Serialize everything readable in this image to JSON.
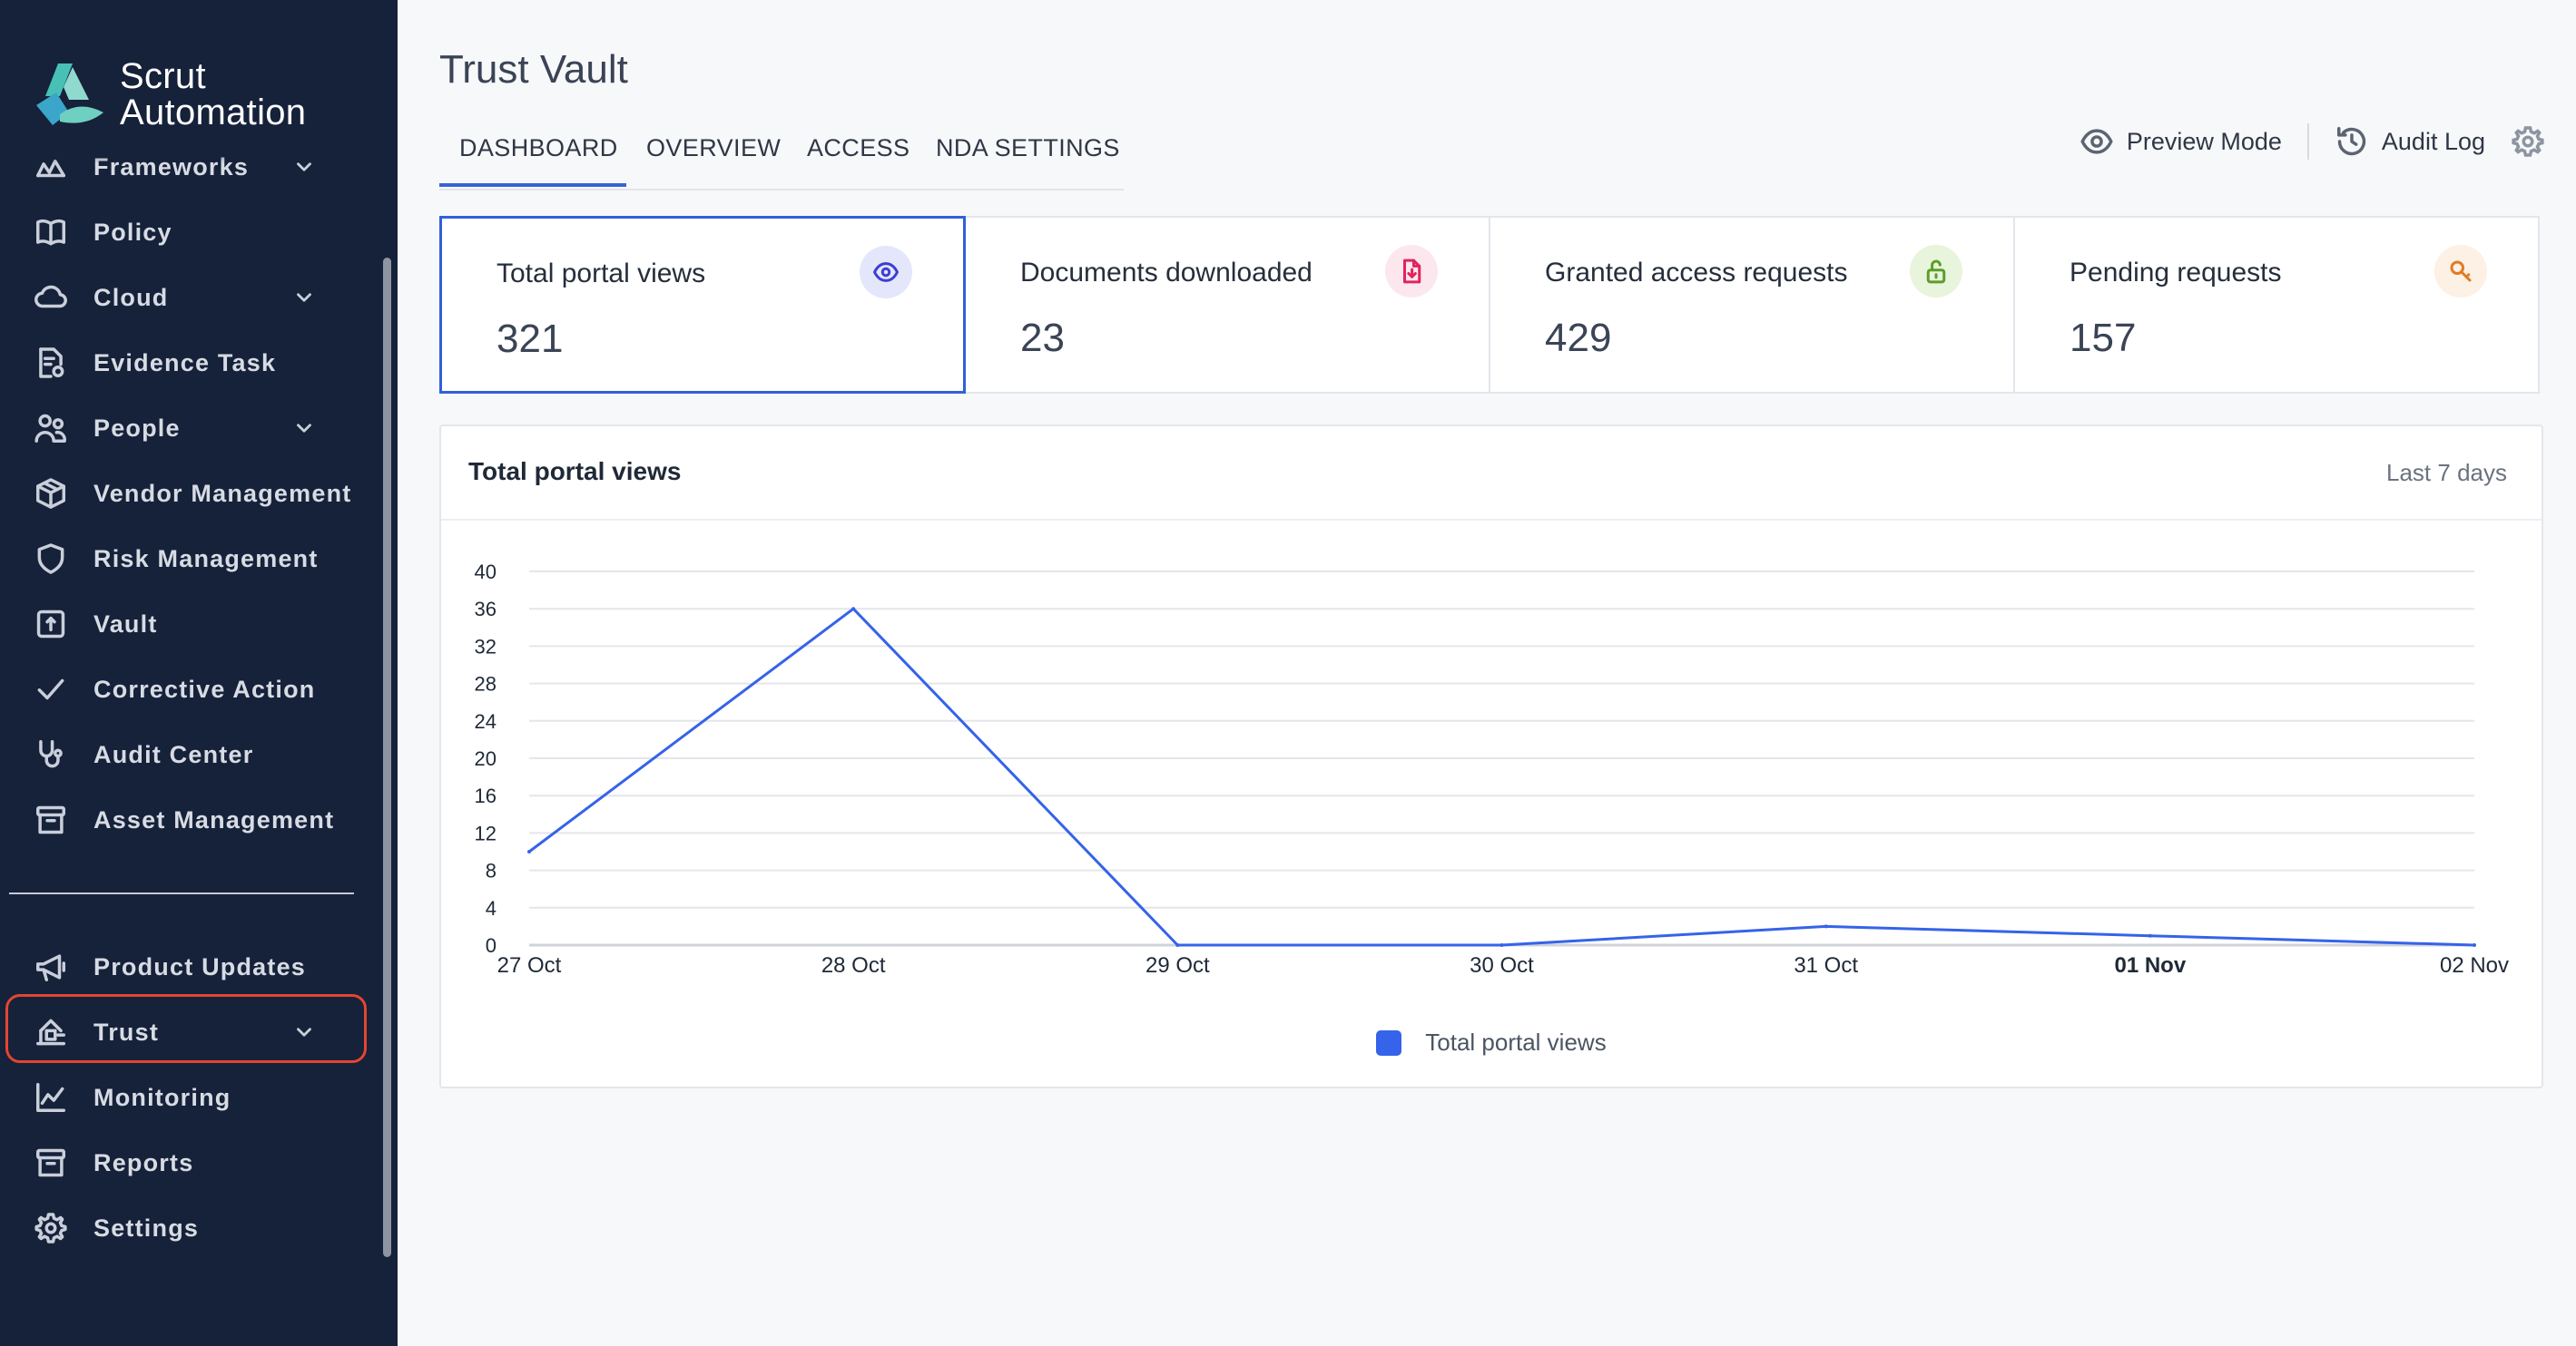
{
  "brand": {
    "name_line1": "Scrut",
    "name_line2": "Automation"
  },
  "sidebar": {
    "items": [
      {
        "label": "Frameworks",
        "icon": "frameworks-icon",
        "chevron": true
      },
      {
        "label": "Policy",
        "icon": "book-icon",
        "chevron": false
      },
      {
        "label": "Cloud",
        "icon": "cloud-icon",
        "chevron": true
      },
      {
        "label": "Evidence Task",
        "icon": "evidence-icon",
        "chevron": false
      },
      {
        "label": "People",
        "icon": "people-icon",
        "chevron": true
      },
      {
        "label": "Vendor Management",
        "icon": "package-icon",
        "chevron": false
      },
      {
        "label": "Risk Management",
        "icon": "shield-icon",
        "chevron": false
      },
      {
        "label": "Vault",
        "icon": "vault-icon",
        "chevron": false
      },
      {
        "label": "Corrective Action",
        "icon": "check-icon",
        "chevron": false
      },
      {
        "label": "Audit Center",
        "icon": "stethoscope-icon",
        "chevron": false
      },
      {
        "label": "Asset Management",
        "icon": "archive-icon",
        "chevron": false
      }
    ],
    "bottom_items": [
      {
        "label": "Product Updates",
        "icon": "megaphone-icon",
        "chevron": false
      },
      {
        "label": "Trust",
        "icon": "trust-icon",
        "chevron": true,
        "highlighted": true
      },
      {
        "label": "Monitoring",
        "icon": "chart-line-icon",
        "chevron": false
      },
      {
        "label": "Reports",
        "icon": "archive-icon",
        "chevron": false
      },
      {
        "label": "Settings",
        "icon": "gear-icon",
        "chevron": false
      }
    ]
  },
  "page": {
    "title": "Trust Vault"
  },
  "tabs": [
    {
      "label": "DASHBOARD",
      "active": true
    },
    {
      "label": "OVERVIEW",
      "active": false
    },
    {
      "label": "ACCESS",
      "active": false
    },
    {
      "label": "NDA SETTINGS",
      "active": false
    }
  ],
  "actions": {
    "preview_label": "Preview Mode",
    "audit_label": "Audit Log"
  },
  "stats": [
    {
      "label": "Total portal views",
      "value": "321",
      "icon": "eye-icon",
      "icon_color": "#3b3fd0",
      "icon_bg": "#e4e6fb",
      "active": true
    },
    {
      "label": "Documents downloaded",
      "value": "23",
      "icon": "file-download-icon",
      "icon_color": "#e0245e",
      "icon_bg": "#fde7ee",
      "active": false
    },
    {
      "label": "Granted access requests",
      "value": "429",
      "icon": "unlock-icon",
      "icon_color": "#5a9e2a",
      "icon_bg": "#e8f4dc",
      "active": false
    },
    {
      "label": "Pending requests",
      "value": "157",
      "icon": "key-icon",
      "icon_color": "#e07b26",
      "icon_bg": "#fdf0e4",
      "active": false
    }
  ],
  "chart_card": {
    "title": "Total portal views",
    "range": "Last 7 days"
  },
  "chart_data": {
    "type": "line",
    "categories": [
      "27 Oct",
      "28 Oct",
      "29 Oct",
      "30 Oct",
      "31 Oct",
      "01 Nov",
      "02 Nov"
    ],
    "bold_category": "01 Nov",
    "series": [
      {
        "name": "Total portal views",
        "color": "#3563e9",
        "values": [
          10,
          36,
          0,
          0,
          2,
          1,
          0
        ]
      }
    ],
    "ylim": [
      0,
      40
    ],
    "yticks": [
      0,
      4,
      8,
      12,
      16,
      20,
      24,
      28,
      32,
      36,
      40
    ],
    "grid": true,
    "legend": "bottom"
  }
}
